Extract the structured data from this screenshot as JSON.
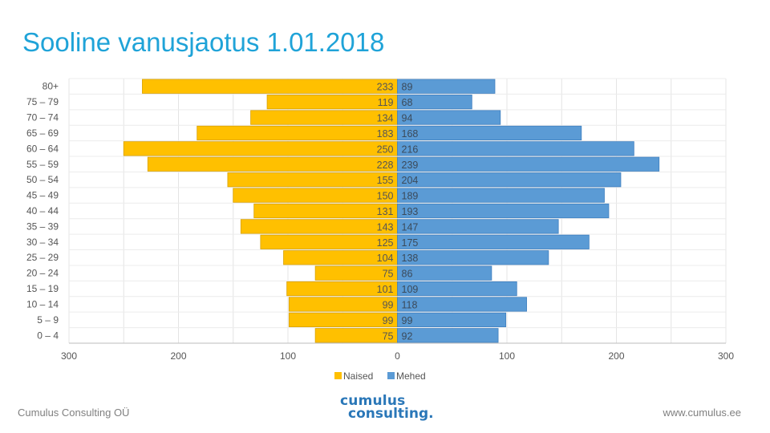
{
  "slide": {
    "title": "Sooline vanusjaotus 1.01.2018",
    "footer_left": "Cumulus Consulting OÜ",
    "footer_right": "www.cumulus.ee",
    "logo_line1": "cumulus",
    "logo_line2": "consulting."
  },
  "chart_data": {
    "type": "bar",
    "orientation": "horizontal",
    "style": "population-pyramid",
    "categories": [
      "80+",
      "75 – 79",
      "70 – 74",
      "65 – 69",
      "60 – 64",
      "55 – 59",
      "50 – 54",
      "45 – 49",
      "40 – 44",
      "35 – 39",
      "30 – 34",
      "25 – 29",
      "20 – 24",
      "15 – 19",
      "10 – 14",
      "5 – 9",
      "0 – 4"
    ],
    "series": [
      {
        "name": "Naised",
        "color": "#ffc000",
        "side": "left",
        "values": [
          233,
          119,
          134,
          183,
          250,
          228,
          155,
          150,
          131,
          143,
          125,
          104,
          75,
          101,
          99,
          99,
          75
        ]
      },
      {
        "name": "Mehed",
        "color": "#5b9bd5",
        "side": "right",
        "values": [
          89,
          68,
          94,
          168,
          216,
          239,
          204,
          189,
          193,
          147,
          175,
          138,
          86,
          109,
          118,
          99,
          92
        ]
      }
    ],
    "xlim": [
      -300,
      300
    ],
    "xticks": [
      -300,
      -200,
      -100,
      0,
      100,
      200,
      300
    ],
    "xtick_labels": [
      "300",
      "200",
      "100",
      "0",
      "100",
      "200",
      "300"
    ],
    "grid": true,
    "legend": "bottom-center",
    "title": "",
    "xlabel": "",
    "ylabel": ""
  }
}
